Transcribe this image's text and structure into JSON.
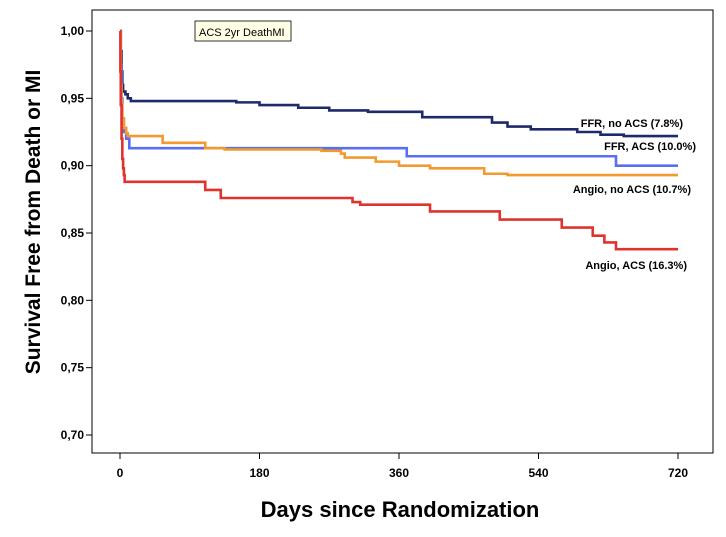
{
  "chart_data": {
    "type": "line",
    "subtype": "kaplan-meier step",
    "legend_title": "ACS 2yr DeathMI",
    "xlabel": "Days since Randomization",
    "ylabel": "Survival Free from Death or MI",
    "xlim": [
      -20,
      740
    ],
    "ylim": [
      0.69,
      1.015
    ],
    "x_ticks": [
      0,
      180,
      360,
      540,
      720
    ],
    "x_tick_labels": [
      "0",
      "180",
      "360",
      "540",
      "720"
    ],
    "y_ticks": [
      0.7,
      0.75,
      0.8,
      0.85,
      0.9,
      0.95,
      1.0
    ],
    "y_tick_labels": [
      "0,70",
      "0,75",
      "0,80",
      "0,85",
      "0,90",
      "0,95",
      "1,00"
    ],
    "grid": false,
    "series": [
      {
        "name": "FFR, no ACS (7.8%)",
        "color": "#1f2a6b",
        "points": [
          [
            0,
            1.0
          ],
          [
            1,
            0.985
          ],
          [
            2,
            0.97
          ],
          [
            3,
            0.96
          ],
          [
            4,
            0.955
          ],
          [
            7,
            0.953
          ],
          [
            10,
            0.95
          ],
          [
            14,
            0.948
          ],
          [
            150,
            0.947
          ],
          [
            180,
            0.945
          ],
          [
            230,
            0.943
          ],
          [
            270,
            0.941
          ],
          [
            320,
            0.94
          ],
          [
            390,
            0.936
          ],
          [
            480,
            0.932
          ],
          [
            500,
            0.929
          ],
          [
            530,
            0.927
          ],
          [
            590,
            0.925
          ],
          [
            620,
            0.923
          ],
          [
            650,
            0.922
          ],
          [
            720,
            0.922
          ]
        ]
      },
      {
        "name": "FFR, ACS (10.0%)",
        "color": "#5a6ef0",
        "points": [
          [
            0,
            1.0
          ],
          [
            1,
            0.975
          ],
          [
            2,
            0.95
          ],
          [
            3,
            0.935
          ],
          [
            5,
            0.925
          ],
          [
            8,
            0.92
          ],
          [
            12,
            0.913
          ],
          [
            370,
            0.913
          ],
          [
            370,
            0.907
          ],
          [
            640,
            0.907
          ],
          [
            640,
            0.9
          ],
          [
            720,
            0.9
          ]
        ]
      },
      {
        "name": "Angio, no ACS (10.7%)",
        "color": "#f29a30",
        "points": [
          [
            0,
            1.0
          ],
          [
            1,
            0.96
          ],
          [
            2,
            0.945
          ],
          [
            3,
            0.935
          ],
          [
            5,
            0.928
          ],
          [
            8,
            0.924
          ],
          [
            10,
            0.922
          ],
          [
            55,
            0.92
          ],
          [
            55,
            0.917
          ],
          [
            110,
            0.917
          ],
          [
            110,
            0.913
          ],
          [
            135,
            0.912
          ],
          [
            260,
            0.911
          ],
          [
            285,
            0.909
          ],
          [
            290,
            0.906
          ],
          [
            330,
            0.906
          ],
          [
            330,
            0.903
          ],
          [
            360,
            0.903
          ],
          [
            360,
            0.9
          ],
          [
            400,
            0.9
          ],
          [
            400,
            0.898
          ],
          [
            470,
            0.898
          ],
          [
            470,
            0.894
          ],
          [
            500,
            0.893
          ],
          [
            720,
            0.893
          ]
        ]
      },
      {
        "name": "Angio, ACS (16.3%)",
        "color": "#e0332e",
        "points": [
          [
            0,
            1.0
          ],
          [
            0.5,
            0.97
          ],
          [
            1,
            0.945
          ],
          [
            2,
            0.92
          ],
          [
            3,
            0.905
          ],
          [
            4,
            0.898
          ],
          [
            5,
            0.893
          ],
          [
            6,
            0.888
          ],
          [
            110,
            0.888
          ],
          [
            110,
            0.882
          ],
          [
            130,
            0.882
          ],
          [
            130,
            0.876
          ],
          [
            270,
            0.876
          ],
          [
            300,
            0.873
          ],
          [
            310,
            0.871
          ],
          [
            400,
            0.871
          ],
          [
            400,
            0.866
          ],
          [
            470,
            0.866
          ],
          [
            490,
            0.863
          ],
          [
            490,
            0.86
          ],
          [
            570,
            0.86
          ],
          [
            570,
            0.854
          ],
          [
            610,
            0.854
          ],
          [
            610,
            0.848
          ],
          [
            625,
            0.848
          ],
          [
            625,
            0.843
          ],
          [
            640,
            0.843
          ],
          [
            640,
            0.838
          ],
          [
            720,
            0.838
          ]
        ]
      }
    ]
  }
}
